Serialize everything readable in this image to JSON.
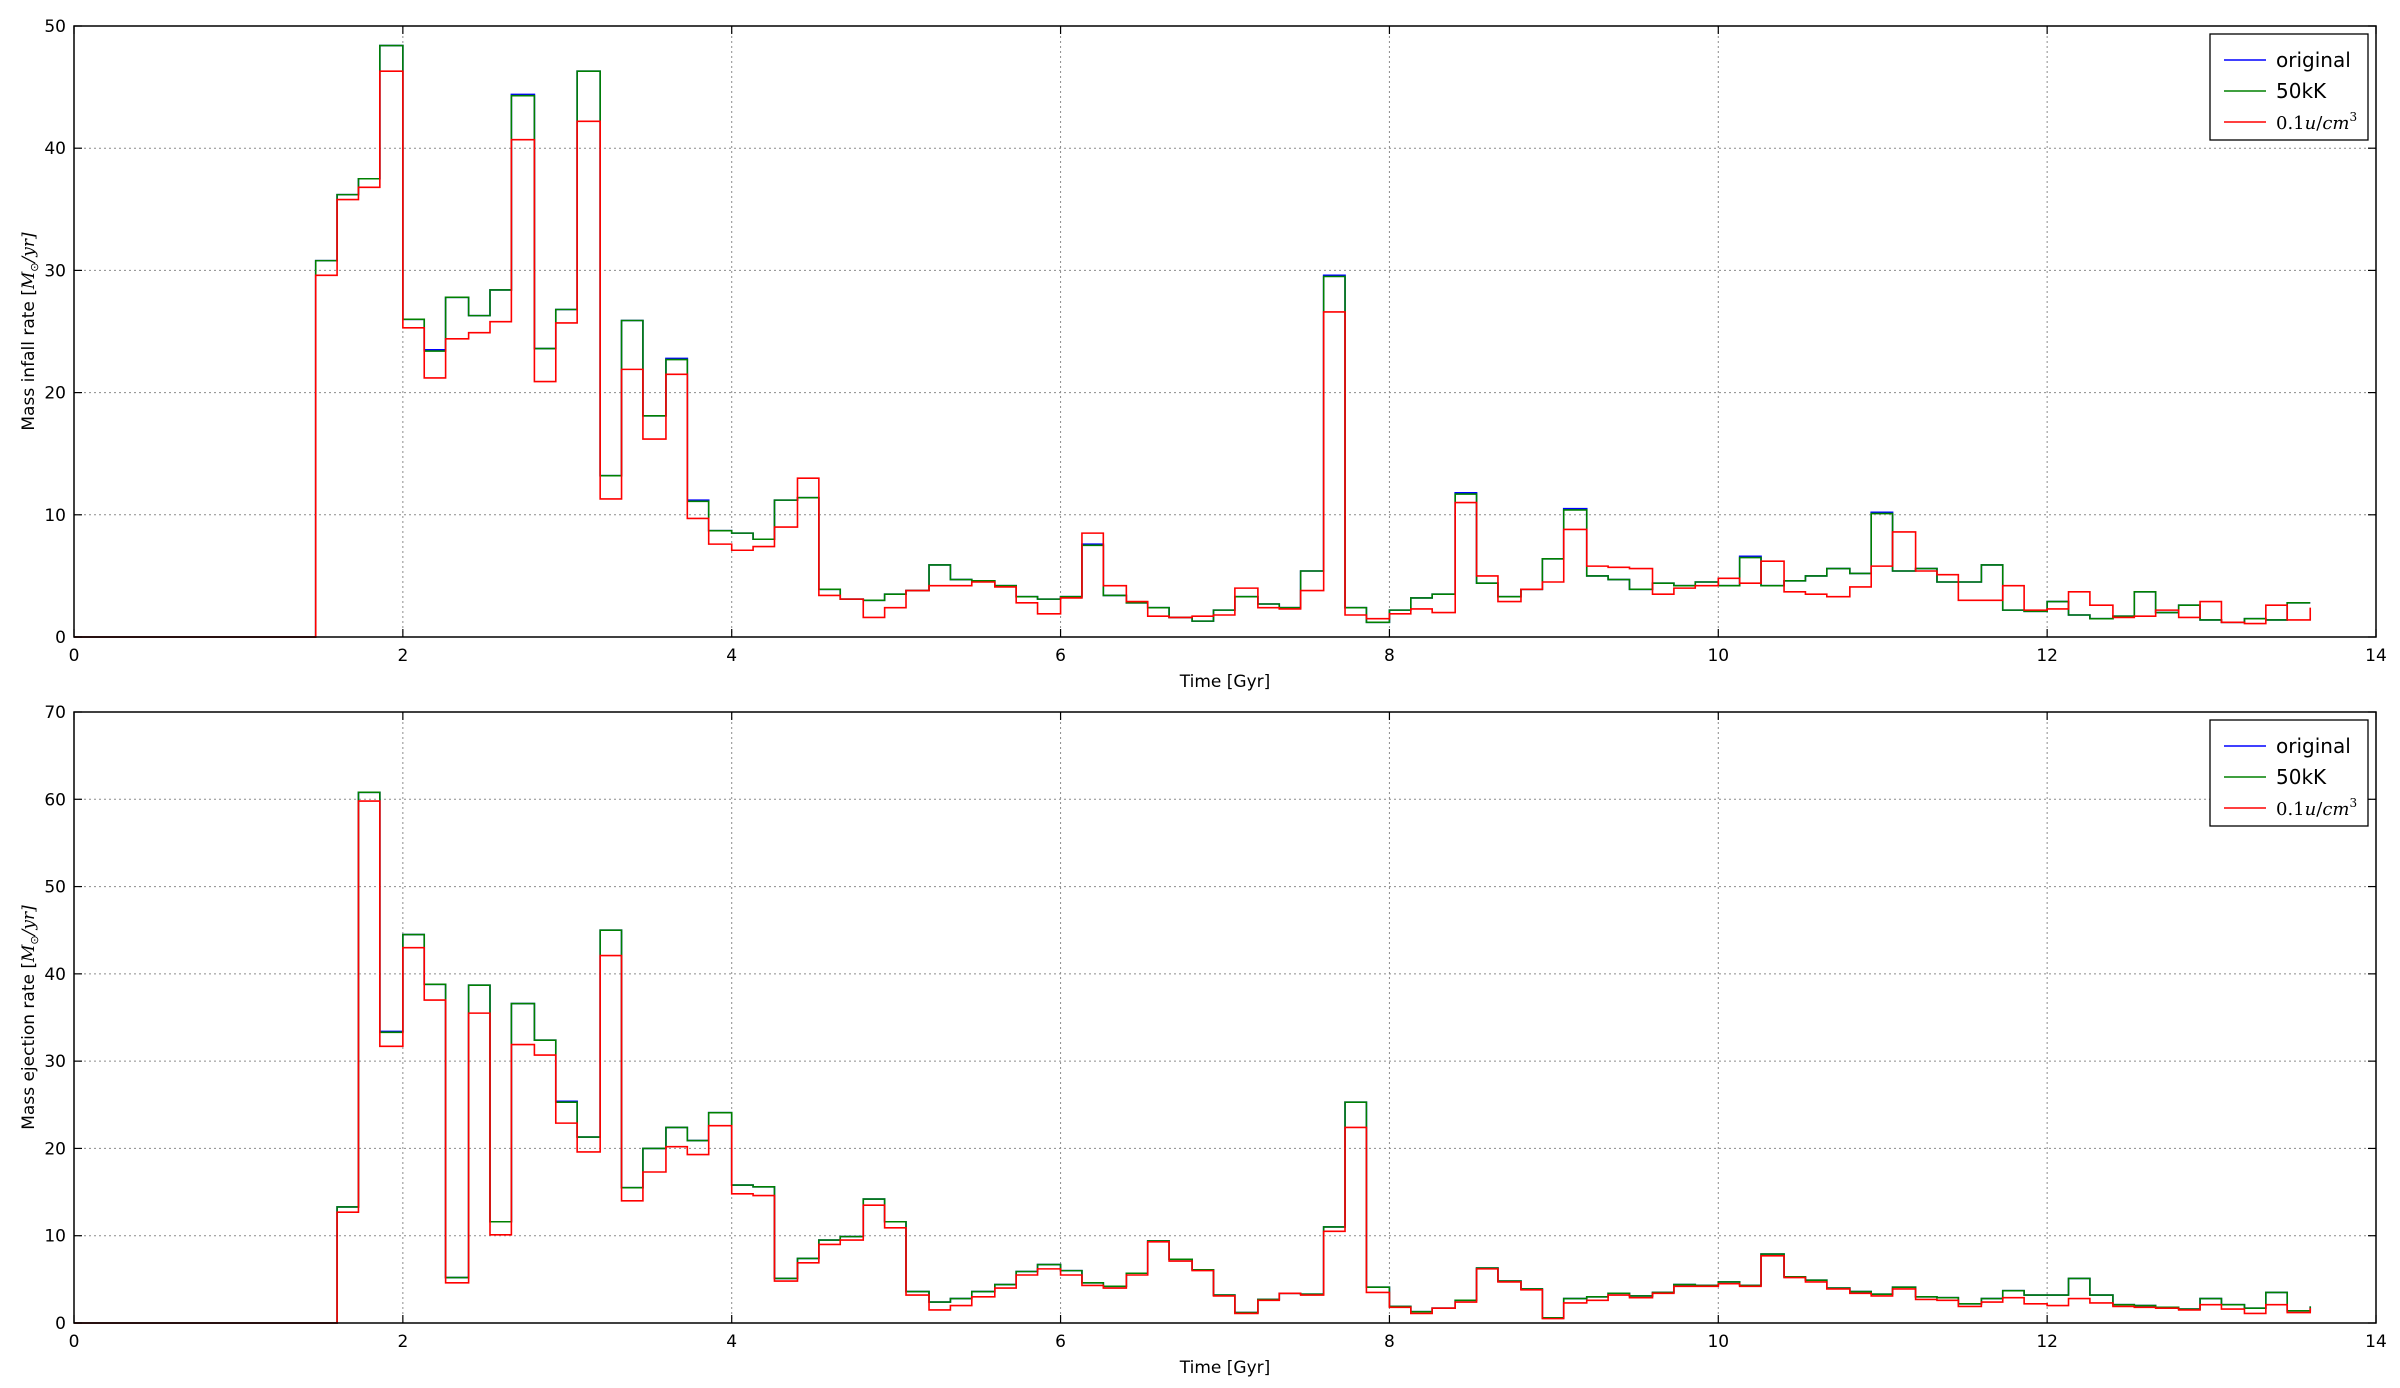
{
  "chart_data": [
    {
      "type": "line",
      "step": true,
      "xlabel": "Time [Gyr]",
      "ylabel": "Mass infall rate [M_⊙/yr]",
      "ylabel_parts": {
        "prefix": "Mass infall rate [",
        "math": "M",
        "sub": "⊙",
        "suffix": "/yr]"
      },
      "xlim": [
        0,
        14
      ],
      "ylim": [
        0,
        50
      ],
      "xticks": [
        0,
        2,
        4,
        6,
        8,
        10,
        12,
        14
      ],
      "yticks": [
        0,
        10,
        20,
        30,
        40,
        50
      ],
      "grid": true,
      "legend_position": "top-right",
      "bin_edges": [
        1.47,
        1.6,
        1.73,
        1.86,
        2.0,
        2.13,
        2.26,
        2.4,
        2.53,
        2.66,
        2.8,
        2.93,
        3.06,
        3.2,
        3.33,
        3.46,
        3.6,
        3.73,
        3.86,
        4.0,
        4.13,
        4.26,
        4.4,
        4.53,
        4.66,
        4.8,
        4.93,
        5.06,
        5.2,
        5.33,
        5.46,
        5.6,
        5.73,
        5.86,
        6.0,
        6.13,
        6.26,
        6.4,
        6.53,
        6.66,
        6.8,
        6.93,
        7.06,
        7.2,
        7.33,
        7.46,
        7.6,
        7.73,
        7.86,
        8.0,
        8.13,
        8.26,
        8.4,
        8.53,
        8.66,
        8.8,
        8.93,
        9.06,
        9.2,
        9.33,
        9.46,
        9.6,
        9.73,
        9.86,
        10.0,
        10.13,
        10.26,
        10.4,
        10.53,
        10.66,
        10.8,
        10.93,
        11.06,
        11.2,
        11.33,
        11.46,
        11.6,
        11.73,
        11.86,
        12.0,
        12.13,
        12.26,
        12.4,
        12.53,
        12.66,
        12.8,
        12.93,
        13.06,
        13.2,
        13.33,
        13.46,
        13.6
      ],
      "series": [
        {
          "name": "original",
          "color": "#0000ff",
          "values": [
            30.8,
            36.2,
            37.5,
            48.4,
            26.0,
            23.5,
            27.8,
            26.3,
            28.4,
            44.4,
            23.6,
            26.8,
            46.3,
            13.2,
            25.9,
            18.1,
            22.8,
            11.2,
            8.7,
            8.5,
            8.0,
            11.2,
            11.4,
            3.9,
            3.1,
            3.0,
            3.5,
            3.8,
            5.9,
            4.7,
            4.6,
            4.2,
            3.3,
            3.1,
            3.3,
            7.6,
            3.4,
            2.8,
            2.4,
            1.6,
            1.3,
            2.2,
            3.3,
            2.7,
            2.4,
            5.4,
            29.6,
            2.4,
            1.2,
            2.2,
            3.2,
            3.5,
            11.8,
            4.4,
            3.3,
            3.9,
            6.4,
            10.5,
            5.0,
            4.7,
            3.9,
            4.4,
            4.2,
            4.5,
            4.2,
            6.6,
            4.2,
            4.6,
            5.0,
            5.6,
            5.2,
            10.2,
            5.4,
            5.6,
            4.5,
            4.5,
            5.9,
            2.2,
            2.1,
            2.9,
            1.8,
            1.5,
            1.7,
            3.7,
            2.0,
            2.6,
            1.4,
            1.2,
            1.5,
            1.4,
            2.8
          ]
        },
        {
          "name": "50kK",
          "color": "#008000",
          "values": [
            30.8,
            36.2,
            37.5,
            48.4,
            26.0,
            23.4,
            27.8,
            26.3,
            28.4,
            44.3,
            23.6,
            26.8,
            46.3,
            13.2,
            25.9,
            18.1,
            22.7,
            11.1,
            8.7,
            8.5,
            8.0,
            11.2,
            11.4,
            3.9,
            3.1,
            3.0,
            3.5,
            3.8,
            5.9,
            4.7,
            4.6,
            4.2,
            3.3,
            3.1,
            3.3,
            7.5,
            3.4,
            2.8,
            2.4,
            1.6,
            1.3,
            2.2,
            3.3,
            2.7,
            2.4,
            5.4,
            29.5,
            2.4,
            1.2,
            2.2,
            3.2,
            3.5,
            11.7,
            4.4,
            3.3,
            3.9,
            6.4,
            10.4,
            5.0,
            4.7,
            3.9,
            4.4,
            4.2,
            4.5,
            4.2,
            6.5,
            4.2,
            4.6,
            5.0,
            5.6,
            5.2,
            10.1,
            5.4,
            5.6,
            4.5,
            4.5,
            5.9,
            2.2,
            2.1,
            2.9,
            1.8,
            1.5,
            1.7,
            3.7,
            2.0,
            2.6,
            1.4,
            1.2,
            1.5,
            1.4,
            2.8
          ]
        },
        {
          "name": "0.1u/cm^3",
          "color": "#ff0000",
          "values": [
            29.6,
            35.8,
            36.8,
            46.3,
            25.3,
            21.2,
            24.4,
            24.9,
            25.8,
            40.7,
            20.9,
            25.7,
            42.2,
            11.3,
            21.9,
            16.2,
            21.5,
            9.7,
            7.6,
            7.1,
            7.4,
            9.0,
            13.0,
            3.4,
            3.1,
            1.6,
            2.4,
            3.8,
            4.2,
            4.2,
            4.5,
            4.1,
            2.8,
            1.9,
            3.2,
            8.5,
            4.2,
            2.9,
            1.7,
            1.6,
            1.7,
            1.8,
            4.0,
            2.4,
            2.3,
            3.8,
            26.6,
            1.8,
            1.5,
            1.9,
            2.3,
            2.0,
            11.0,
            5.0,
            2.9,
            3.9,
            4.5,
            8.8,
            5.8,
            5.7,
            5.6,
            3.5,
            4.0,
            4.2,
            4.8,
            4.4,
            6.2,
            3.7,
            3.5,
            3.3,
            4.1,
            5.8,
            8.6,
            5.4,
            5.1,
            3.0,
            3.0,
            4.2,
            2.2,
            2.3,
            3.7,
            2.6,
            1.6,
            1.7,
            2.2,
            1.6,
            2.9,
            1.2,
            1.1,
            2.6,
            1.4,
            2.4
          ]
        }
      ]
    },
    {
      "type": "line",
      "step": true,
      "xlabel": "Time [Gyr]",
      "ylabel": "Mass ejection rate [M_⊙/yr]",
      "ylabel_parts": {
        "prefix": "Mass ejection rate [",
        "math": "M",
        "sub": "⊙",
        "suffix": "/yr]"
      },
      "xlim": [
        0,
        14
      ],
      "ylim": [
        0,
        70
      ],
      "xticks": [
        0,
        2,
        4,
        6,
        8,
        10,
        12,
        14
      ],
      "yticks": [
        0,
        10,
        20,
        30,
        40,
        50,
        60,
        70
      ],
      "grid": true,
      "legend_position": "top-right",
      "bin_edges": [
        1.6,
        1.73,
        1.86,
        2.0,
        2.13,
        2.26,
        2.4,
        2.53,
        2.66,
        2.8,
        2.93,
        3.06,
        3.2,
        3.33,
        3.46,
        3.6,
        3.73,
        3.86,
        4.0,
        4.13,
        4.26,
        4.4,
        4.53,
        4.66,
        4.8,
        4.93,
        5.06,
        5.2,
        5.33,
        5.46,
        5.6,
        5.73,
        5.86,
        6.0,
        6.13,
        6.26,
        6.4,
        6.53,
        6.66,
        6.8,
        6.93,
        7.06,
        7.2,
        7.33,
        7.46,
        7.6,
        7.73,
        7.86,
        8.0,
        8.13,
        8.26,
        8.4,
        8.53,
        8.66,
        8.8,
        8.93,
        9.06,
        9.2,
        9.33,
        9.46,
        9.6,
        9.73,
        9.86,
        10.0,
        10.13,
        10.26,
        10.4,
        10.53,
        10.66,
        10.8,
        10.93,
        11.06,
        11.2,
        11.33,
        11.46,
        11.6,
        11.73,
        11.86,
        12.0,
        12.13,
        12.26,
        12.4,
        12.53,
        12.66,
        12.8,
        12.93,
        13.06,
        13.2,
        13.33,
        13.46,
        13.6
      ],
      "series": [
        {
          "name": "original",
          "color": "#0000ff",
          "values": [
            13.3,
            60.8,
            33.4,
            44.5,
            38.8,
            5.2,
            38.7,
            11.6,
            36.6,
            32.4,
            25.4,
            21.3,
            45.0,
            15.5,
            20.0,
            22.4,
            20.9,
            24.1,
            15.8,
            15.6,
            5.1,
            7.4,
            9.5,
            9.9,
            14.2,
            11.6,
            3.6,
            2.4,
            2.8,
            3.6,
            4.4,
            5.9,
            6.7,
            6.0,
            4.6,
            4.2,
            5.7,
            9.4,
            7.3,
            6.1,
            3.2,
            1.2,
            2.7,
            3.4,
            3.3,
            11.0,
            25.3,
            4.1,
            1.9,
            1.3,
            1.7,
            2.6,
            6.3,
            4.8,
            3.9,
            0.6,
            2.8,
            3.0,
            3.4,
            3.1,
            3.5,
            4.4,
            4.3,
            4.7,
            4.3,
            7.9,
            5.3,
            4.9,
            4.0,
            3.6,
            3.3,
            4.1,
            3.0,
            2.9,
            2.2,
            2.8,
            3.7,
            3.2,
            3.2,
            5.1,
            3.2,
            2.1,
            2.0,
            1.8,
            1.6,
            2.8,
            2.1,
            1.7,
            3.5,
            1.4,
            1.9
          ]
        },
        {
          "name": "50kK",
          "color": "#008000",
          "values": [
            13.3,
            60.8,
            33.3,
            44.5,
            38.8,
            5.2,
            38.7,
            11.6,
            36.6,
            32.4,
            25.3,
            21.3,
            45.0,
            15.5,
            20.0,
            22.4,
            20.9,
            24.1,
            15.8,
            15.6,
            5.1,
            7.4,
            9.5,
            9.9,
            14.2,
            11.6,
            3.6,
            2.4,
            2.8,
            3.6,
            4.4,
            5.9,
            6.7,
            6.0,
            4.6,
            4.2,
            5.7,
            9.4,
            7.3,
            6.1,
            3.2,
            1.2,
            2.7,
            3.4,
            3.3,
            11.0,
            25.3,
            4.1,
            1.9,
            1.3,
            1.7,
            2.6,
            6.3,
            4.8,
            3.9,
            0.6,
            2.8,
            3.0,
            3.4,
            3.1,
            3.5,
            4.4,
            4.3,
            4.7,
            4.3,
            7.9,
            5.3,
            4.9,
            4.0,
            3.6,
            3.3,
            4.1,
            3.0,
            2.9,
            2.2,
            2.8,
            3.7,
            3.2,
            3.2,
            5.1,
            3.2,
            2.1,
            2.0,
            1.8,
            1.6,
            2.8,
            2.1,
            1.7,
            3.5,
            1.4,
            1.9
          ]
        },
        {
          "name": "0.1u/cm^3",
          "color": "#ff0000",
          "values": [
            12.7,
            59.8,
            31.7,
            43.0,
            37.0,
            4.6,
            35.5,
            10.1,
            31.9,
            30.7,
            22.9,
            19.6,
            42.1,
            14.0,
            17.3,
            20.2,
            19.3,
            22.6,
            14.8,
            14.6,
            4.8,
            6.9,
            9.0,
            9.5,
            13.5,
            10.9,
            3.2,
            1.5,
            2.0,
            3.0,
            4.0,
            5.5,
            6.2,
            5.5,
            4.3,
            4.0,
            5.5,
            9.3,
            7.1,
            6.0,
            3.1,
            1.1,
            2.6,
            3.4,
            3.2,
            10.5,
            22.4,
            3.5,
            1.8,
            1.1,
            1.7,
            2.4,
            6.2,
            4.7,
            3.8,
            0.5,
            2.3,
            2.6,
            3.2,
            2.9,
            3.4,
            4.2,
            4.2,
            4.5,
            4.2,
            7.7,
            5.2,
            4.7,
            3.9,
            3.4,
            3.1,
            3.9,
            2.7,
            2.6,
            1.9,
            2.4,
            2.9,
            2.2,
            2.0,
            2.8,
            2.3,
            1.9,
            1.8,
            1.7,
            1.5,
            2.1,
            1.6,
            1.1,
            2.1,
            1.2,
            1.7
          ]
        }
      ]
    }
  ],
  "legend_labels": [
    "original",
    "50kK",
    "0.1u/cm^3"
  ],
  "legend_math": {
    "coef": "0.1",
    "num": "u",
    "slash": "/",
    "den": "cm",
    "exp": "3"
  }
}
